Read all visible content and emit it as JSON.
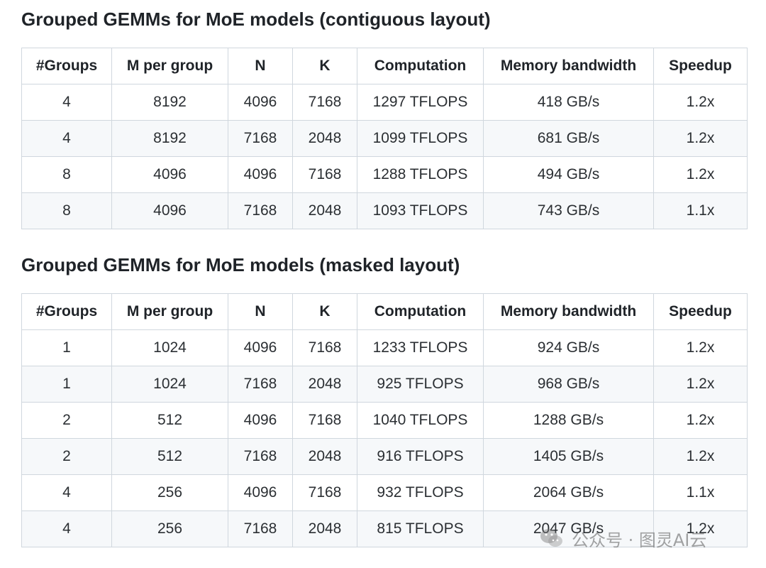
{
  "sections": [
    {
      "title": "Grouped GEMMs for MoE models (contiguous layout)",
      "table": {
        "headers": [
          "#Groups",
          "M per group",
          "N",
          "K",
          "Computation",
          "Memory bandwidth",
          "Speedup"
        ],
        "rows": [
          [
            "4",
            "8192",
            "4096",
            "7168",
            "1297 TFLOPS",
            "418 GB/s",
            "1.2x"
          ],
          [
            "4",
            "8192",
            "7168",
            "2048",
            "1099 TFLOPS",
            "681 GB/s",
            "1.2x"
          ],
          [
            "8",
            "4096",
            "4096",
            "7168",
            "1288 TFLOPS",
            "494 GB/s",
            "1.2x"
          ],
          [
            "8",
            "4096",
            "7168",
            "2048",
            "1093 TFLOPS",
            "743 GB/s",
            "1.1x"
          ]
        ]
      }
    },
    {
      "title": "Grouped GEMMs for MoE models (masked layout)",
      "table": {
        "headers": [
          "#Groups",
          "M per group",
          "N",
          "K",
          "Computation",
          "Memory bandwidth",
          "Speedup"
        ],
        "rows": [
          [
            "1",
            "1024",
            "4096",
            "7168",
            "1233 TFLOPS",
            "924 GB/s",
            "1.2x"
          ],
          [
            "1",
            "1024",
            "7168",
            "2048",
            "925 TFLOPS",
            "968 GB/s",
            "1.2x"
          ],
          [
            "2",
            "512",
            "4096",
            "7168",
            "1040 TFLOPS",
            "1288 GB/s",
            "1.2x"
          ],
          [
            "2",
            "512",
            "7168",
            "2048",
            "916 TFLOPS",
            "1405 GB/s",
            "1.2x"
          ],
          [
            "4",
            "256",
            "4096",
            "7168",
            "932 TFLOPS",
            "2064 GB/s",
            "1.1x"
          ],
          [
            "4",
            "256",
            "7168",
            "2048",
            "815 TFLOPS",
            "2047 GB/s",
            "1.2x"
          ]
        ]
      }
    }
  ],
  "watermark": {
    "icon": "wechat-icon",
    "text": "公众号 · 图灵AI云"
  }
}
